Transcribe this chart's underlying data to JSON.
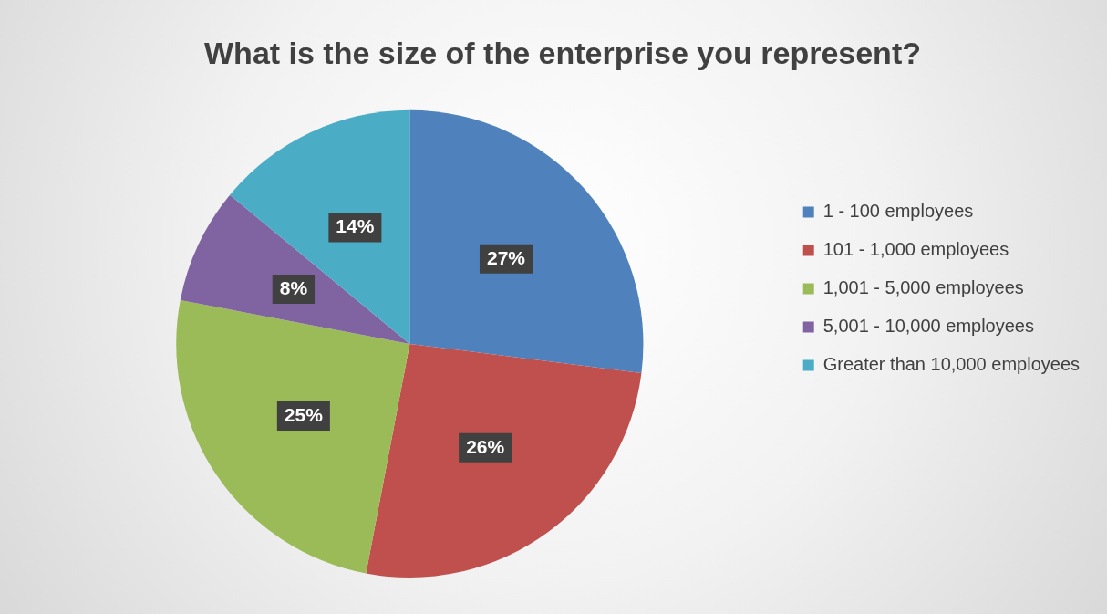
{
  "chart_data": {
    "type": "pie",
    "title": "What is the size of the enterprise you represent?",
    "categories": [
      "1 - 100 employees",
      "101 - 1,000 employees",
      "1,001 - 5,000 employees",
      "5,001 - 10,000 employees",
      "Greater than 10,000 employees"
    ],
    "values": [
      27,
      26,
      25,
      8,
      14
    ],
    "colors": [
      "#4f81bd",
      "#c0504d",
      "#9bbb59",
      "#8064a2",
      "#4bacc6"
    ],
    "value_labels": [
      "27%",
      "26%",
      "25%",
      "8%",
      "14%"
    ],
    "legend": "right"
  }
}
